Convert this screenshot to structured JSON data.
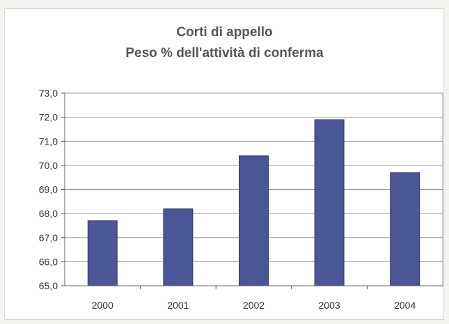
{
  "chart_data": {
    "type": "bar",
    "title": "Corti di appello",
    "subtitle": "Peso % dell'attività di conferma",
    "categories": [
      "2000",
      "2001",
      "2002",
      "2003",
      "2004"
    ],
    "values": [
      67.7,
      68.2,
      70.4,
      71.9,
      69.7
    ],
    "ylim": [
      65.0,
      73.0
    ],
    "yticks": [
      "65,0",
      "66,0",
      "67,0",
      "68,0",
      "69,0",
      "70,0",
      "71,0",
      "72,0",
      "73,0"
    ],
    "xlabel": "",
    "ylabel": "",
    "grid": true,
    "legend": "none",
    "bar_color": "#4a5695",
    "bar_edge_color": "#2e3566"
  }
}
